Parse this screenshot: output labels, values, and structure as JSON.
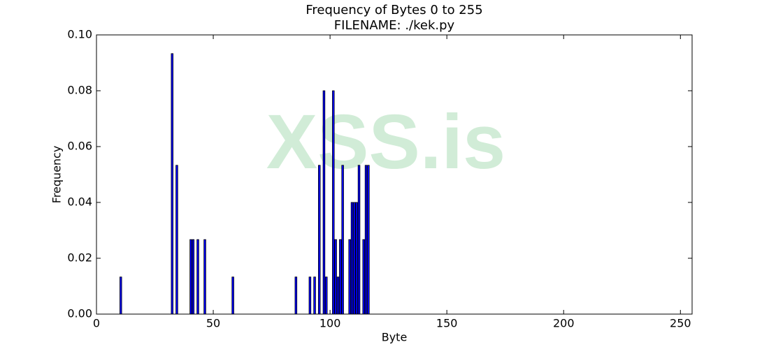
{
  "chart_data": {
    "type": "bar",
    "title": "Frequency of Bytes 0 to 255",
    "subtitle": "FILENAME: ./kek.py",
    "x_label": "Byte",
    "y_label": "Frequency",
    "watermark": "XSS.is",
    "color": "#0000ff",
    "x": [
      10,
      32,
      34,
      40,
      41,
      43,
      46,
      58,
      85,
      91,
      93,
      95,
      97,
      98,
      101,
      102,
      103,
      104,
      105,
      108,
      109,
      110,
      111,
      112,
      114,
      115,
      116
    ],
    "values": [
      0.0133,
      0.0933,
      0.0533,
      0.0267,
      0.0267,
      0.0267,
      0.0267,
      0.0133,
      0.0133,
      0.0133,
      0.0133,
      0.0533,
      0.08,
      0.0133,
      0.08,
      0.0267,
      0.0133,
      0.0267,
      0.0533,
      0.0267,
      0.04,
      0.04,
      0.04,
      0.0533,
      0.0267,
      0.0533,
      0.0533
    ],
    "xlim": [
      0,
      255
    ],
    "xticks": [
      0,
      50,
      100,
      150,
      200,
      250
    ],
    "ylim": [
      0,
      0.1
    ],
    "yticks": [
      {
        "value": 0,
        "label": "0.00"
      },
      {
        "value": 0.02,
        "label": "0.02"
      },
      {
        "value": 0.04,
        "label": "0.04"
      },
      {
        "value": 0.06,
        "label": "0.06"
      },
      {
        "value": 0.08,
        "label": "0.08"
      },
      {
        "value": 0.1,
        "label": "0.10"
      }
    ]
  }
}
